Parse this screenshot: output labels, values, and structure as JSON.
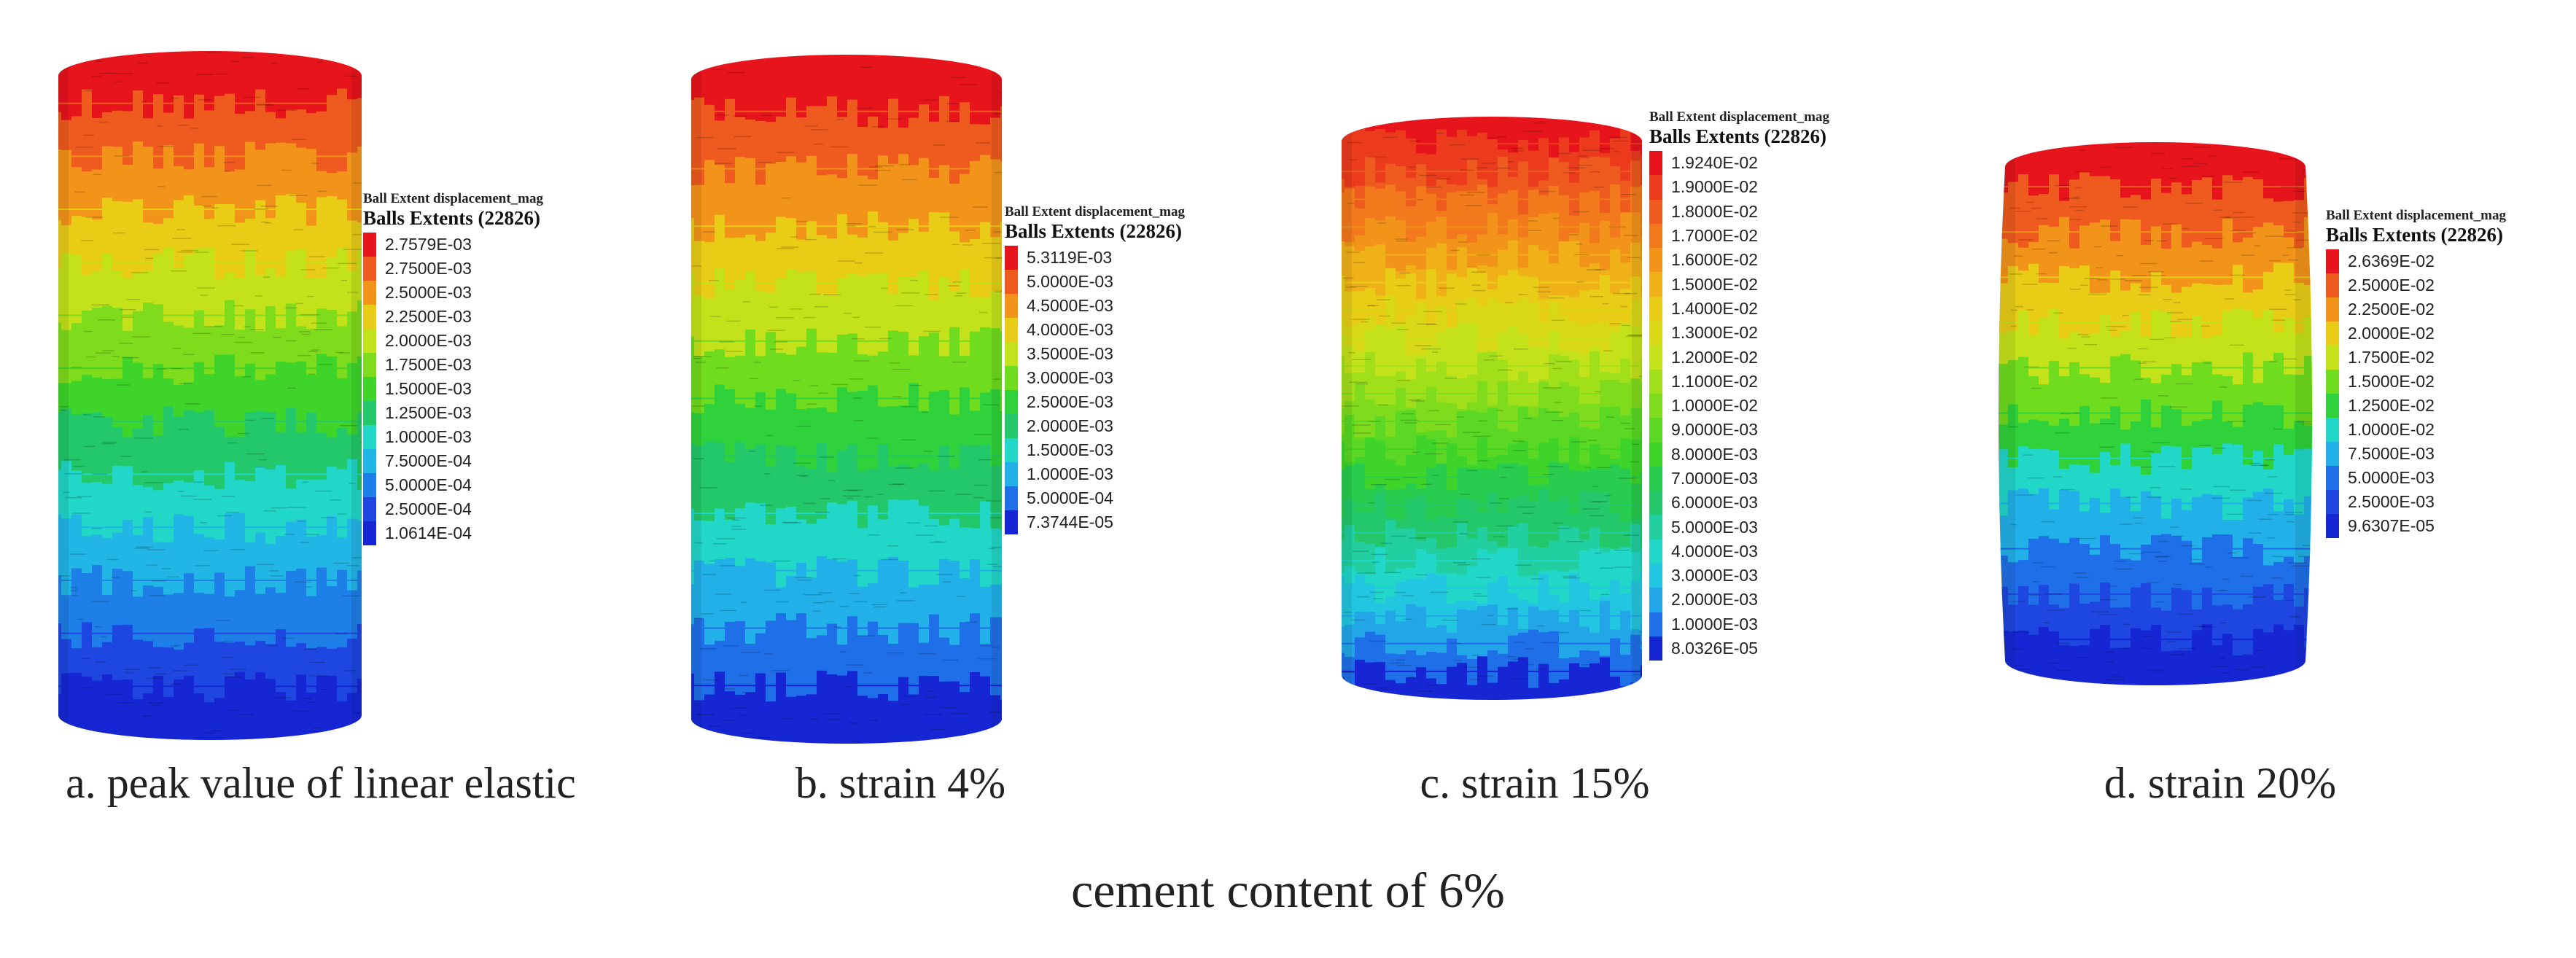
{
  "figure": {
    "footer": "cement content of 6%",
    "panels": [
      {
        "caption": "a. peak value of linear elastic",
        "legend_title": "Ball Extent displacement_mag",
        "legend_subtitle": "Balls Extents (22826)",
        "legend_values": [
          "2.7579E-03",
          "2.7500E-03",
          "2.5000E-03",
          "2.2500E-03",
          "2.0000E-03",
          "1.7500E-03",
          "1.5000E-03",
          "1.2500E-03",
          "1.0000E-03",
          "7.5000E-04",
          "5.0000E-04",
          "2.5000E-04",
          "1.0614E-04"
        ],
        "legend_colors": [
          "#e8141c",
          "#ef5a1e",
          "#f2931a",
          "#e9cc16",
          "#c4e21a",
          "#7fdc1c",
          "#3fd42a",
          "#22c869",
          "#20d7c8",
          "#22b6e6",
          "#1f7fe8",
          "#1e46e0",
          "#1626d4"
        ]
      },
      {
        "caption": "b. strain 4%",
        "legend_title": "Ball Extent displacement_mag",
        "legend_subtitle": "Balls Extents (22826)",
        "legend_values": [
          "5.3119E-03",
          "5.0000E-03",
          "4.5000E-03",
          "4.0000E-03",
          "3.5000E-03",
          "3.0000E-03",
          "2.5000E-03",
          "2.0000E-03",
          "1.5000E-03",
          "1.0000E-03",
          "5.0000E-04",
          "7.3744E-05"
        ],
        "legend_colors": [
          "#e8141c",
          "#ef5a1e",
          "#f2931a",
          "#e9cc16",
          "#c4e21a",
          "#6fdc1e",
          "#2fd23a",
          "#22c869",
          "#20d7c8",
          "#22b0e8",
          "#1f6fe8",
          "#1626d4"
        ]
      },
      {
        "caption": "c. strain 15%",
        "legend_title": "Ball Extent displacement_mag",
        "legend_subtitle": "Balls Extents (22826)",
        "legend_values": [
          "1.9240E-02",
          "1.9000E-02",
          "1.8000E-02",
          "1.7000E-02",
          "1.6000E-02",
          "1.5000E-02",
          "1.4000E-02",
          "1.3000E-02",
          "1.2000E-02",
          "1.1000E-02",
          "1.0000E-02",
          "9.0000E-03",
          "8.0000E-03",
          "7.0000E-03",
          "6.0000E-03",
          "5.0000E-03",
          "4.0000E-03",
          "3.0000E-03",
          "2.0000E-03",
          "1.0000E-03",
          "8.0326E-05"
        ],
        "legend_colors": [
          "#e8141c",
          "#ec3a1d",
          "#ef5a1e",
          "#f2791c",
          "#f2931a",
          "#f0b018",
          "#e9cc16",
          "#d8d816",
          "#c4e21a",
          "#a2df1b",
          "#7fdc1c",
          "#5ad823",
          "#3fd42a",
          "#28cc4e",
          "#22c869",
          "#21cfa0",
          "#20d7c8",
          "#22c6e0",
          "#22a6e8",
          "#1f6fe8",
          "#1626d4"
        ]
      },
      {
        "caption": "d. strain 20%",
        "legend_title": "Ball Extent displacement_mag",
        "legend_subtitle": "Balls Extents (22826)",
        "legend_values": [
          "2.6369E-02",
          "2.5000E-02",
          "2.2500E-02",
          "2.0000E-02",
          "1.7500E-02",
          "1.5000E-02",
          "1.2500E-02",
          "1.0000E-02",
          "7.5000E-03",
          "5.0000E-03",
          "2.5000E-03",
          "9.6307E-05"
        ],
        "legend_colors": [
          "#e8141c",
          "#ef5a1e",
          "#f2931a",
          "#e9cc16",
          "#c4e21a",
          "#6fdc1e",
          "#2fd23a",
          "#20d7c8",
          "#22b0e8",
          "#1f6fe8",
          "#1e46e0",
          "#1626d4"
        ]
      }
    ]
  }
}
